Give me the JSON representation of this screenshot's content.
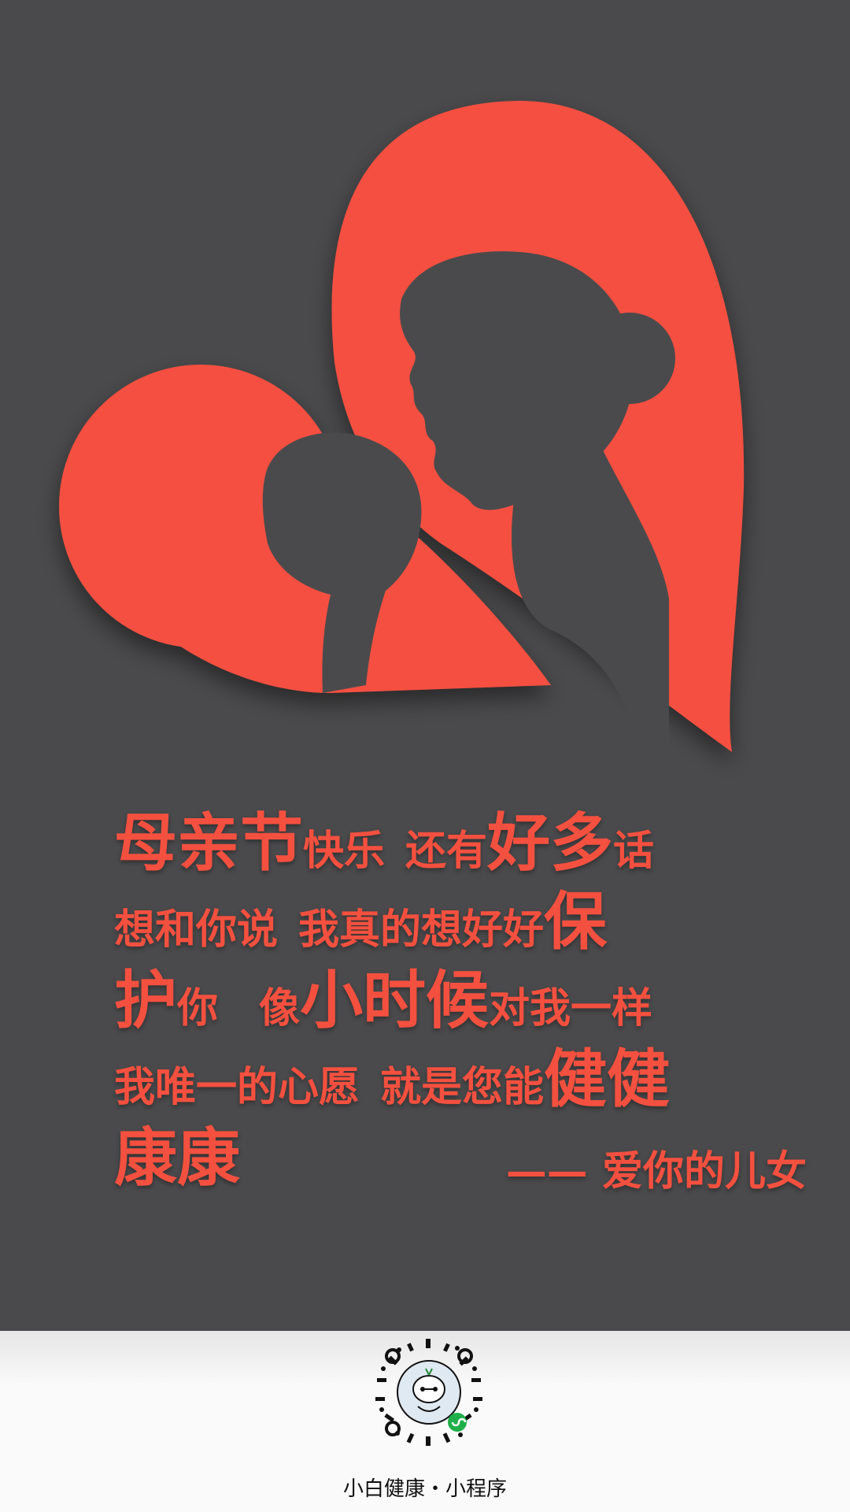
{
  "poem": {
    "line1": [
      "母亲节",
      "快乐",
      "还有",
      "好多",
      "话"
    ],
    "line2": [
      "想和你说",
      "我真的想好好",
      "保"
    ],
    "line3": [
      "护",
      "你",
      "像",
      "小时候",
      "对我一样"
    ],
    "line4": [
      "我唯一的心愿",
      "就是您能",
      "健健"
    ],
    "line5": [
      "康康"
    ],
    "signature": "—— 爱你的儿女"
  },
  "footer": {
    "caption": "小白健康・小程序",
    "qr_icon": "mini-program-code-icon"
  },
  "colors": {
    "background": "#4a4a4c",
    "accent": "#f4503f",
    "footer_bg": "#fafafa"
  }
}
